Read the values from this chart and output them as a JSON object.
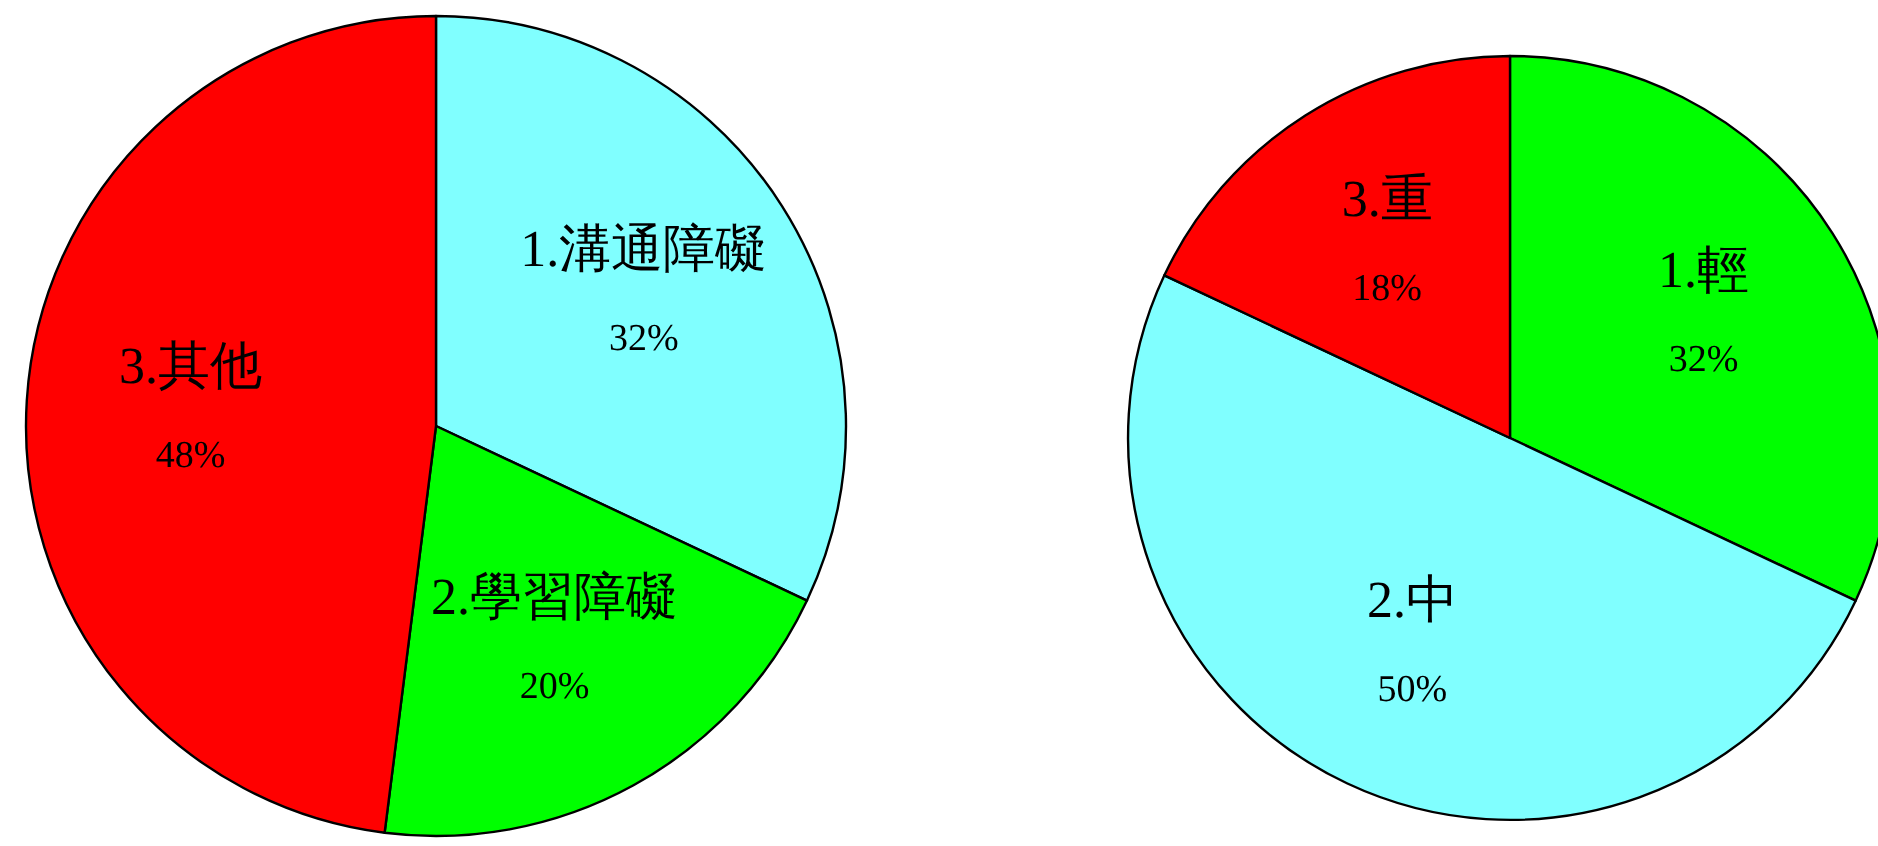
{
  "chart_data": [
    {
      "type": "pie",
      "categories": [
        "1.溝通障礙",
        "2.學習障礙",
        "3.其他"
      ],
      "values": [
        32,
        20,
        48
      ],
      "colors": [
        "#80ffff",
        "#00ff00",
        "#ff0000"
      ],
      "value_labels": [
        "32%",
        "20%",
        "48%"
      ]
    },
    {
      "type": "pie",
      "categories": [
        "1.輕",
        "2.中",
        "3.重"
      ],
      "values": [
        32,
        50,
        18
      ],
      "colors": [
        "#00ff00",
        "#80ffff",
        "#ff0000"
      ],
      "value_labels": [
        "32%",
        "50%",
        "18%"
      ]
    }
  ]
}
